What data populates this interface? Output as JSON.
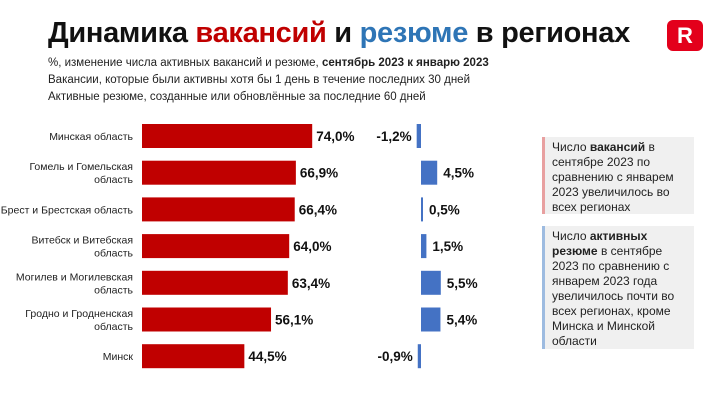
{
  "title": {
    "part1": "Динамика ",
    "part2": "вакансий",
    "part3": " и ",
    "part4": "резюме",
    "part5": " в регионах"
  },
  "subtitle": {
    "prefix": "%, изменение числа активных вакансий и резюме, ",
    "bold": "сентябрь 2023 к январю 2023"
  },
  "notes": [
    "Вакансии, которые были активны хотя бы 1 день в течение последних 30 дней",
    "Активные резюме, созданные или обновлённые за последние 60 дней"
  ],
  "logo": "R",
  "colors": {
    "vacancies": "#c00000",
    "resumes": "#4472c4"
  },
  "chart_data": {
    "type": "bar",
    "categories": [
      "Минская область",
      "Гомель и Гомельская область",
      "Брест и Брестская область",
      "Витебск и Витебская область",
      "Могилев и Могилевская область",
      "Гродно и Гродненская область",
      "Минск"
    ],
    "series": [
      {
        "name": "вакансий",
        "values": [
          74.0,
          66.9,
          66.4,
          64.0,
          63.4,
          56.1,
          44.5
        ],
        "labels": [
          "74,0%",
          "66,9%",
          "66,4%",
          "64,0%",
          "63,4%",
          "56,1%",
          "44,5%"
        ]
      },
      {
        "name": "резюме",
        "values": [
          -1.2,
          4.5,
          0.5,
          1.5,
          5.5,
          5.4,
          -0.9
        ],
        "labels": [
          "-1,2%",
          "4,5%",
          "0,5%",
          "1,5%",
          "5,5%",
          "5,4%",
          "-0,9%"
        ]
      }
    ]
  },
  "callouts": [
    {
      "pre": "Число ",
      "bold": "вакансий",
      "post": " в сентябре 2023 по сравнению с январем 2023 увеличилось во всех регионах",
      "color": "#e8a0a0"
    },
    {
      "pre": "Число ",
      "bold": "активных резюме",
      "post": " в сентябре 2023 по сравнению с январем 2023 года увеличилось почти во всех регионах, кроме Минска и Минской области",
      "color": "#9dbbe0"
    }
  ]
}
